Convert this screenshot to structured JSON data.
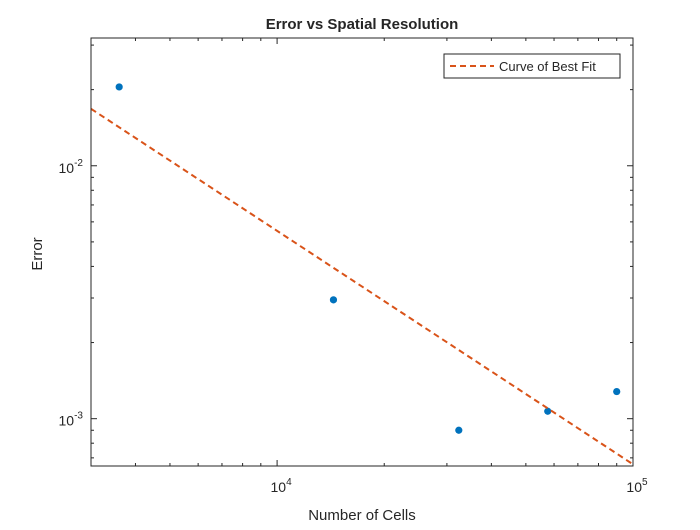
{
  "chart_data": {
    "type": "scatter",
    "title": "Error vs Spatial Resolution",
    "xlabel": "Number of Cells",
    "ylabel": "Error",
    "xscale": "log",
    "yscale": "log",
    "xlim": [
      3000,
      100000
    ],
    "ylim": [
      0.00065,
      0.032
    ],
    "x_ticks": [
      {
        "value": 10000,
        "base": "10",
        "exp": "4"
      },
      {
        "value": 100000,
        "base": "10",
        "exp": "5"
      }
    ],
    "y_ticks": [
      {
        "value": 0.01,
        "base": "10",
        "exp": "-2"
      },
      {
        "value": 0.001,
        "base": "10",
        "exp": "-3"
      }
    ],
    "grid": false,
    "legend_position": "top-right",
    "series": [
      {
        "kind": "points",
        "color": "#0072BD",
        "x": [
          3600,
          14400,
          32400,
          57600,
          90000
        ],
        "y": [
          0.0205,
          0.00295,
          0.0009,
          0.00107,
          0.00128
        ]
      },
      {
        "kind": "line",
        "name": "Curve of Best Fit",
        "color": "#D95319",
        "dash": "dashed",
        "x": [
          3000,
          100000
        ],
        "y": [
          0.0168,
          0.00066
        ]
      }
    ]
  }
}
